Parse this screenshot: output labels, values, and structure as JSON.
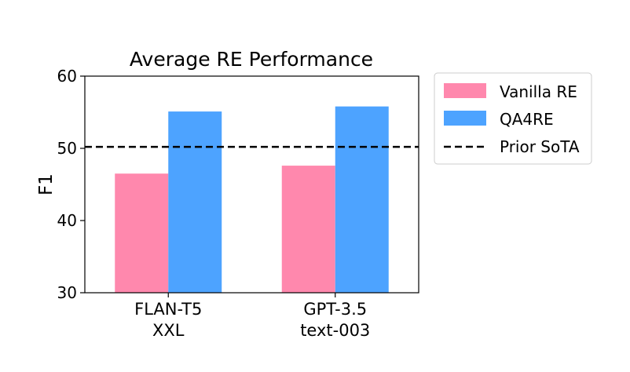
{
  "chart_data": {
    "type": "bar",
    "title": "Average RE Performance",
    "xlabel": "",
    "ylabel": "F1",
    "ylim": [
      30,
      60
    ],
    "yticks": [
      "30",
      "40",
      "50",
      "60"
    ],
    "categories": [
      [
        "FLAN-T5",
        "XXL"
      ],
      [
        "GPT-3.5",
        "text-003"
      ]
    ],
    "series": [
      {
        "name": "Vanilla RE",
        "color": "#ff88ad",
        "values": [
          46.5,
          47.6
        ]
      },
      {
        "name": "QA4RE",
        "color": "#4da3ff",
        "values": [
          55.1,
          55.8
        ]
      }
    ],
    "reference_lines": [
      {
        "name": "Prior SoTA",
        "value": 50.2,
        "style": "dashed",
        "color": "#000000"
      }
    ],
    "legend": {
      "placement": "right-top, outside plot",
      "entries": [
        "Vanilla RE",
        "QA4RE",
        "Prior SoTA"
      ]
    },
    "grid": false
  }
}
